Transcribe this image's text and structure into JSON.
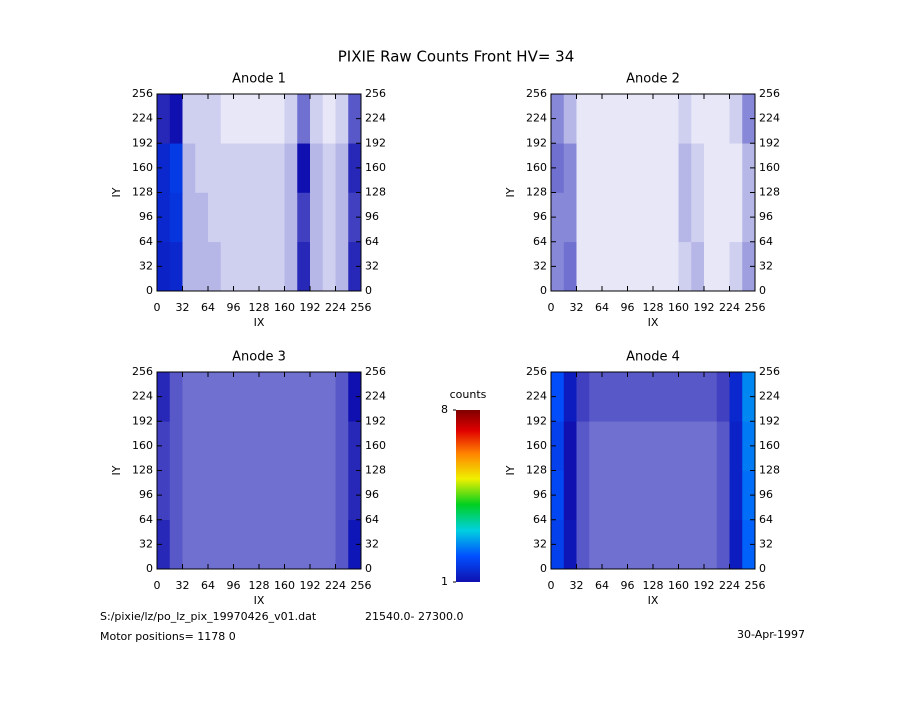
{
  "title": "PIXIE Raw Counts Front HV= 34",
  "chart_data": [
    {
      "type": "heatmap",
      "title": "Anode 1",
      "xlabel": "IX",
      "ylabel": "IY",
      "xlim": [
        0,
        256
      ],
      "ylim": [
        0,
        256
      ],
      "xticks": [
        0,
        32,
        64,
        96,
        128,
        160,
        192,
        224,
        256
      ],
      "yticks": [
        0,
        32,
        64,
        96,
        128,
        160,
        192,
        224,
        256
      ],
      "z": [
        [
          1.3,
          1.4,
          0.3,
          0.3,
          0.3,
          0.2,
          0.2,
          0.2,
          0.2,
          0.2,
          0.3,
          0.9,
          0.3,
          0.2,
          0.3,
          0.9
        ],
        [
          1.4,
          1.6,
          0.3,
          0.3,
          0.2,
          0.2,
          0.2,
          0.2,
          0.2,
          0.2,
          0.3,
          0.8,
          0.3,
          0.2,
          0.3,
          0.8
        ],
        [
          1.4,
          1.7,
          0.3,
          0.2,
          0.2,
          0.2,
          0.2,
          0.2,
          0.2,
          0.2,
          0.3,
          1.0,
          0.3,
          0.2,
          0.3,
          0.9
        ],
        [
          0.9,
          1.0,
          0.2,
          0.2,
          0.2,
          0.1,
          0.1,
          0.1,
          0.1,
          0.1,
          0.2,
          0.6,
          0.2,
          0.1,
          0.2,
          0.7
        ]
      ]
    },
    {
      "type": "heatmap",
      "title": "Anode 2",
      "xlabel": "IX",
      "ylabel": "IY",
      "xlim": [
        0,
        256
      ],
      "ylim": [
        0,
        256
      ],
      "xticks": [
        0,
        32,
        64,
        96,
        128,
        160,
        192,
        224,
        256
      ],
      "yticks": [
        0,
        32,
        64,
        96,
        128,
        160,
        192,
        224,
        256
      ],
      "z": [
        [
          0.5,
          0.6,
          0.1,
          0.1,
          0.1,
          0.1,
          0.1,
          0.1,
          0.1,
          0.1,
          0.2,
          0.3,
          0.1,
          0.1,
          0.2,
          0.4
        ],
        [
          0.5,
          0.5,
          0.1,
          0.1,
          0.1,
          0.1,
          0.1,
          0.1,
          0.1,
          0.1,
          0.3,
          0.2,
          0.1,
          0.1,
          0.1,
          0.3
        ],
        [
          0.6,
          0.5,
          0.1,
          0.1,
          0.1,
          0.1,
          0.1,
          0.1,
          0.1,
          0.1,
          0.3,
          0.2,
          0.1,
          0.1,
          0.1,
          0.3
        ],
        [
          0.5,
          0.3,
          0.1,
          0.1,
          0.1,
          0.1,
          0.1,
          0.1,
          0.1,
          0.1,
          0.2,
          0.1,
          0.1,
          0.1,
          0.2,
          0.5
        ]
      ]
    },
    {
      "type": "heatmap",
      "title": "Anode 3",
      "xlabel": "IX",
      "ylabel": "IY",
      "xlim": [
        0,
        256
      ],
      "ylim": [
        0,
        256
      ],
      "xticks": [
        0,
        32,
        64,
        96,
        128,
        160,
        192,
        224,
        256
      ],
      "yticks": [
        0,
        32,
        64,
        96,
        128,
        160,
        192,
        224,
        256
      ],
      "z": [
        [
          0.9,
          0.7,
          0.6,
          0.6,
          0.6,
          0.6,
          0.6,
          0.6,
          0.6,
          0.6,
          0.6,
          0.6,
          0.6,
          0.6,
          0.7,
          1.1
        ],
        [
          0.8,
          0.7,
          0.6,
          0.6,
          0.6,
          0.6,
          0.6,
          0.6,
          0.6,
          0.6,
          0.6,
          0.6,
          0.6,
          0.6,
          0.7,
          0.9
        ],
        [
          0.8,
          0.7,
          0.6,
          0.6,
          0.6,
          0.6,
          0.6,
          0.6,
          0.6,
          0.6,
          0.6,
          0.6,
          0.6,
          0.6,
          0.7,
          0.9
        ],
        [
          0.9,
          0.7,
          0.6,
          0.6,
          0.6,
          0.6,
          0.6,
          0.6,
          0.6,
          0.6,
          0.6,
          0.6,
          0.6,
          0.6,
          0.7,
          1.0
        ]
      ]
    },
    {
      "type": "heatmap",
      "title": "Anode 4",
      "xlabel": "IX",
      "ylabel": "IY",
      "xlim": [
        0,
        256
      ],
      "ylim": [
        0,
        256
      ],
      "xticks": [
        0,
        32,
        64,
        96,
        128,
        160,
        192,
        224,
        256
      ],
      "yticks": [
        0,
        32,
        64,
        96,
        128,
        160,
        192,
        224,
        256
      ],
      "z": [
        [
          1.8,
          1.1,
          0.7,
          0.6,
          0.6,
          0.6,
          0.6,
          0.6,
          0.6,
          0.6,
          0.6,
          0.6,
          0.6,
          0.7,
          1.2,
          2.2
        ],
        [
          1.9,
          1.0,
          0.7,
          0.6,
          0.6,
          0.6,
          0.6,
          0.6,
          0.6,
          0.6,
          0.6,
          0.6,
          0.6,
          0.7,
          1.3,
          2.3
        ],
        [
          1.8,
          1.0,
          0.7,
          0.6,
          0.6,
          0.6,
          0.6,
          0.6,
          0.6,
          0.6,
          0.6,
          0.6,
          0.6,
          0.7,
          1.3,
          2.4
        ],
        [
          2.0,
          1.2,
          0.8,
          0.7,
          0.7,
          0.7,
          0.7,
          0.7,
          0.7,
          0.7,
          0.7,
          0.7,
          0.7,
          0.8,
          1.4,
          2.5
        ]
      ]
    }
  ],
  "colorbar": {
    "label": "counts",
    "range": [
      1,
      8
    ],
    "ticks": [
      1,
      8
    ]
  },
  "footer": {
    "file": "S:/pixie/lz/po_lz_pix_19970426_v01.dat",
    "range": "21540.0- 27300.0",
    "motor": "Motor positions= 1178 0",
    "date": "30-Apr-1997"
  }
}
